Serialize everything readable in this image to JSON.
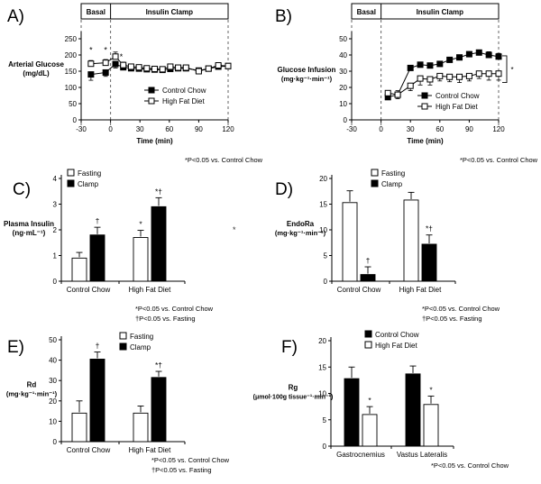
{
  "figure": {
    "stray_mark": "*"
  },
  "chart_data": [
    {
      "id": "A",
      "panel_label": "A)",
      "type": "line",
      "phase_header": {
        "left": "Basal",
        "right": "Insulin Clamp",
        "divider_at_x": 0
      },
      "ylabel_lines": [
        "Arterial Glucose",
        "(mg/dL)"
      ],
      "xlabel": "Time (min)",
      "xlim": [
        -30,
        120
      ],
      "xticks": [
        -30,
        0,
        30,
        60,
        90,
        120
      ],
      "ylim": [
        0,
        250
      ],
      "yticks": [
        0,
        50,
        100,
        150,
        200,
        250
      ],
      "series": [
        {
          "name": "Control Chow",
          "marker": "filled-square",
          "err_dir": "down",
          "x": [
            -20,
            -5,
            5,
            13,
            21,
            29,
            37,
            45,
            53,
            61,
            69,
            77,
            90,
            100,
            110,
            120
          ],
          "y": [
            140,
            146,
            172,
            162,
            159,
            158,
            156,
            155,
            154,
            157,
            159,
            159,
            152,
            158,
            164,
            166
          ],
          "err": [
            18,
            12,
            12,
            8,
            5,
            4,
            4,
            4,
            4,
            4,
            4,
            4,
            4,
            4,
            5,
            5
          ]
        },
        {
          "name": "High Fat Diet",
          "marker": "open-square",
          "err_dir": "up",
          "x": [
            -20,
            -5,
            5,
            13,
            21,
            29,
            37,
            45,
            53,
            61,
            69,
            77,
            90,
            100,
            110,
            120
          ],
          "y": [
            173,
            176,
            195,
            169,
            164,
            162,
            159,
            157,
            156,
            164,
            161,
            161,
            150,
            158,
            168,
            166
          ],
          "err": [
            10,
            10,
            14,
            9,
            6,
            5,
            5,
            5,
            5,
            6,
            5,
            5,
            5,
            5,
            6,
            6
          ]
        }
      ],
      "annotations": [
        {
          "text": "*",
          "x": -20,
          "y": 207
        },
        {
          "text": "*",
          "x": -5,
          "y": 207
        },
        {
          "text": "*",
          "x": 11,
          "y": 186
        }
      ],
      "footnote_lines": [
        "*P<0.05 vs. Control Chow"
      ]
    },
    {
      "id": "B",
      "panel_label": "B)",
      "type": "line",
      "phase_header": {
        "left": "Basal",
        "right": "Insulin Clamp",
        "divider_at_x": 0
      },
      "ylabel_lines": [
        "Glucose Infusion",
        "(mg·kg⁻¹·min⁻¹)"
      ],
      "xlabel": "Time (min)",
      "xlim": [
        -30,
        120
      ],
      "xticks": [
        -30,
        0,
        30,
        60,
        90,
        120
      ],
      "ylim": [
        0,
        50
      ],
      "yticks": [
        0,
        10,
        20,
        30,
        40,
        50
      ],
      "series": [
        {
          "name": "Control Chow",
          "marker": "filled-square",
          "err_dir": "up",
          "x": [
            7,
            17,
            30,
            40,
            50,
            60,
            70,
            80,
            90,
            100,
            110,
            120
          ],
          "y": [
            14,
            15.5,
            32,
            34,
            33.5,
            34.5,
            37,
            38.5,
            40.5,
            41.5,
            40,
            39
          ],
          "err": [
            3,
            2.5,
            1.5,
            1.5,
            1.5,
            1.5,
            1.5,
            1.5,
            1.5,
            1.5,
            2,
            2
          ]
        },
        {
          "name": "High Fat Diet",
          "marker": "open-square",
          "err_dir": "down",
          "x": [
            7,
            17,
            30,
            40,
            50,
            60,
            70,
            80,
            90,
            100,
            110,
            120
          ],
          "y": [
            16.5,
            15.5,
            21,
            25.5,
            25,
            27,
            26.5,
            26.5,
            27,
            28.5,
            28.5,
            28.5
          ],
          "err": [
            2.5,
            2.5,
            3,
            4,
            3.5,
            3,
            3,
            3.5,
            3,
            3,
            4,
            4
          ]
        }
      ],
      "annotations": [],
      "bracket": {
        "x": 120,
        "y_top": 39.5,
        "y_bottom": 23,
        "text": "*"
      },
      "footnote_lines": [
        "*P<0.05 vs. Control Chow"
      ]
    },
    {
      "id": "C",
      "panel_label": "C)",
      "type": "bar",
      "ylabel_lines": [
        "Plasma Insulin",
        "(ng·mL⁻¹)"
      ],
      "ylim": [
        0,
        4
      ],
      "yticks": [
        0,
        1,
        2,
        3,
        4
      ],
      "categories": [
        "Control Chow",
        "High Fat Diet"
      ],
      "series": [
        {
          "name": "Fasting",
          "fill": "open",
          "values": [
            0.9,
            1.7
          ],
          "errors": [
            0.22,
            0.28
          ],
          "sig_marks": [
            "",
            "*"
          ]
        },
        {
          "name": "Clamp",
          "fill": "filled",
          "values": [
            1.8,
            2.9
          ],
          "errors": [
            0.3,
            0.35
          ],
          "sig_marks": [
            "†",
            "*†"
          ]
        }
      ],
      "legend_position": "top",
      "footnote_lines": [
        "*P<0.05 vs. Control Chow",
        "†P<0.05 vs. Fasting"
      ]
    },
    {
      "id": "D",
      "panel_label": "D)",
      "type": "bar",
      "ylabel_lines": [
        "EndoRa",
        "(mg·kg⁻¹·min⁻¹)"
      ],
      "ylim": [
        0,
        20
      ],
      "yticks": [
        0,
        5,
        10,
        15,
        20
      ],
      "categories": [
        "Control Chow",
        "High Fat Diet"
      ],
      "series": [
        {
          "name": "Fasting",
          "fill": "open",
          "values": [
            15.3,
            15.8
          ],
          "errors": [
            2.3,
            1.5
          ],
          "sig_marks": [
            "",
            ""
          ]
        },
        {
          "name": "Clamp",
          "fill": "filled",
          "values": [
            1.3,
            7.2
          ],
          "errors": [
            1.5,
            1.8
          ],
          "sig_marks": [
            "†",
            "*†"
          ]
        }
      ],
      "legend_position": "top",
      "footnote_lines": [
        "*P<0.05 vs. Control Chow",
        "†P<0.05 vs. Fasting"
      ]
    },
    {
      "id": "E",
      "panel_label": "E)",
      "type": "bar",
      "ylabel_lines": [
        "Rd",
        "(mg·kg⁻¹·min⁻¹)"
      ],
      "ylim": [
        0,
        50
      ],
      "yticks": [
        0,
        10,
        20,
        30,
        40,
        50
      ],
      "categories": [
        "Control Chow",
        "High Fat Diet"
      ],
      "series": [
        {
          "name": "Fasting",
          "fill": "open",
          "values": [
            14,
            14
          ],
          "errors": [
            6,
            3.5
          ],
          "sig_marks": [
            "",
            ""
          ]
        },
        {
          "name": "Clamp",
          "fill": "filled",
          "values": [
            40.5,
            31.5
          ],
          "errors": [
            3.5,
            3
          ],
          "sig_marks": [
            "†",
            "*†"
          ]
        }
      ],
      "legend_position": "top",
      "footnote_lines": [
        "*P<0.05 vs. Control Chow",
        "†P<0.05 vs. Fasting"
      ]
    },
    {
      "id": "F",
      "panel_label": "F)",
      "type": "bar",
      "ylabel_lines": [
        "Rg",
        "(μmol·100g tissue⁻¹·min⁻¹)"
      ],
      "ylim": [
        0,
        20
      ],
      "yticks": [
        0,
        5,
        10,
        15,
        20
      ],
      "categories": [
        "Gastrocnemius",
        "Vastus Lateralis"
      ],
      "series": [
        {
          "name": "Control Chow",
          "fill": "filled",
          "values": [
            12.8,
            13.7
          ],
          "errors": [
            2.2,
            1.5
          ],
          "sig_marks": [
            "",
            ""
          ]
        },
        {
          "name": "High Fat Diet",
          "fill": "open",
          "values": [
            6,
            7.9
          ],
          "errors": [
            1.5,
            1.6
          ],
          "sig_marks": [
            "*",
            "*"
          ]
        }
      ],
      "legend_position": "top",
      "footnote_lines": [
        "*P<0.05 vs. Control Chow"
      ]
    }
  ]
}
